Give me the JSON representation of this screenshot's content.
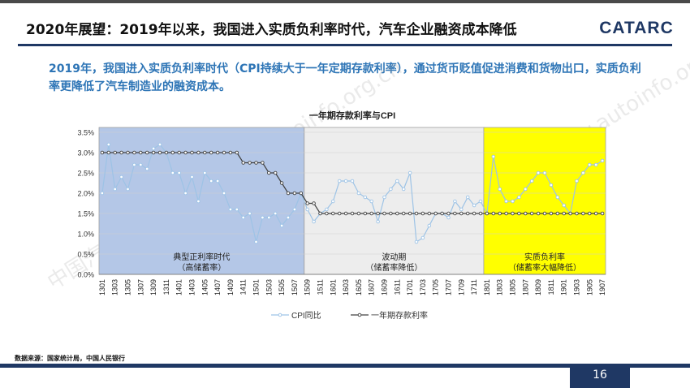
{
  "header": {
    "title": "2020年展望：2019年以来，我国进入实质负利率时代，汽车企业融资成本降低",
    "logo_text": "CATARC"
  },
  "summary": "2019年，我国进入实质负利率时代（CPI持续大于一年定期存款利率），通过货币贬值促进消费和货物出口，实质负利率更降低了汽车制造业的融资成本。",
  "watermarks": [
    "中国汽车工业信息网 www.autoinfo.org.cn",
    "中国汽车工业信息网 www.autoinfo.org.cn"
  ],
  "colors": {
    "navy": "#1f3864",
    "accent": "#2e75b6",
    "region1": "#b4c7e7",
    "region2": "#ededed",
    "region3": "#ffff00",
    "cpi_line": "#9dc3e6",
    "rate_line": "#404040"
  },
  "chart_data": {
    "type": "line",
    "title": "一年期存款利率与CPI",
    "ylim": [
      0,
      3.5
    ],
    "y_ticks": [
      "0.0%",
      "0.5%",
      "1.0%",
      "1.5%",
      "2.0%",
      "2.5%",
      "3.0%",
      "3.5%"
    ],
    "x_tick_labels": [
      "1301",
      "1303",
      "1305",
      "1307",
      "1309",
      "1311",
      "1401",
      "1403",
      "1405",
      "1407",
      "1409",
      "1411",
      "1501",
      "1503",
      "1505",
      "1507",
      "1509",
      "1511",
      "1601",
      "1603",
      "1605",
      "1607",
      "1609",
      "1611",
      "1701",
      "1703",
      "1705",
      "1707",
      "1709",
      "1711",
      "1801",
      "1803",
      "1805",
      "1807",
      "1809",
      "1811",
      "1901",
      "1903",
      "1905",
      "1907"
    ],
    "x": [
      "1301",
      "1302",
      "1303",
      "1304",
      "1305",
      "1306",
      "1307",
      "1308",
      "1309",
      "1310",
      "1311",
      "1312",
      "1401",
      "1402",
      "1403",
      "1404",
      "1405",
      "1406",
      "1407",
      "1408",
      "1409",
      "1410",
      "1411",
      "1412",
      "1501",
      "1502",
      "1503",
      "1504",
      "1505",
      "1506",
      "1507",
      "1508",
      "1509",
      "1510",
      "1511",
      "1512",
      "1601",
      "1602",
      "1603",
      "1604",
      "1605",
      "1606",
      "1607",
      "1608",
      "1609",
      "1610",
      "1611",
      "1612",
      "1701",
      "1702",
      "1703",
      "1704",
      "1705",
      "1706",
      "1707",
      "1708",
      "1709",
      "1710",
      "1711",
      "1712",
      "1801",
      "1802",
      "1803",
      "1804",
      "1805",
      "1806",
      "1807",
      "1808",
      "1809",
      "1810",
      "1811",
      "1812",
      "1901",
      "1902",
      "1903",
      "1904",
      "1905",
      "1906",
      "1907"
    ],
    "series": [
      {
        "name": "CPI同比",
        "values": [
          2.0,
          3.2,
          2.1,
          2.4,
          2.1,
          2.7,
          2.7,
          2.6,
          3.1,
          3.2,
          3.0,
          2.5,
          2.5,
          2.0,
          2.4,
          1.8,
          2.5,
          2.3,
          2.3,
          2.0,
          1.6,
          1.6,
          1.4,
          1.5,
          0.8,
          1.4,
          1.4,
          1.5,
          1.2,
          1.4,
          1.6,
          2.0,
          1.6,
          1.3,
          1.5,
          1.6,
          1.8,
          2.3,
          2.3,
          2.3,
          2.0,
          1.9,
          1.8,
          1.3,
          1.9,
          2.1,
          2.3,
          2.1,
          2.5,
          0.8,
          0.9,
          1.2,
          1.5,
          1.5,
          1.4,
          1.8,
          1.6,
          1.9,
          1.7,
          1.8,
          1.5,
          2.9,
          2.1,
          1.8,
          1.8,
          1.9,
          2.1,
          2.3,
          2.5,
          2.5,
          2.2,
          1.9,
          1.7,
          1.5,
          2.3,
          2.5,
          2.7,
          2.7,
          2.8
        ]
      },
      {
        "name": "一年期存款利率",
        "values": [
          3.0,
          3.0,
          3.0,
          3.0,
          3.0,
          3.0,
          3.0,
          3.0,
          3.0,
          3.0,
          3.0,
          3.0,
          3.0,
          3.0,
          3.0,
          3.0,
          3.0,
          3.0,
          3.0,
          3.0,
          3.0,
          3.0,
          2.75,
          2.75,
          2.75,
          2.75,
          2.5,
          2.5,
          2.25,
          2.0,
          2.0,
          2.0,
          1.75,
          1.75,
          1.5,
          1.5,
          1.5,
          1.5,
          1.5,
          1.5,
          1.5,
          1.5,
          1.5,
          1.5,
          1.5,
          1.5,
          1.5,
          1.5,
          1.5,
          1.5,
          1.5,
          1.5,
          1.5,
          1.5,
          1.5,
          1.5,
          1.5,
          1.5,
          1.5,
          1.5,
          1.5,
          1.5,
          1.5,
          1.5,
          1.5,
          1.5,
          1.5,
          1.5,
          1.5,
          1.5,
          1.5,
          1.5,
          1.5,
          1.5,
          1.5,
          1.5,
          1.5,
          1.5,
          1.5
        ]
      }
    ],
    "regions": [
      {
        "label_line1": "典型正利率时代",
        "label_line2": "（高储蓄率）",
        "start": "1301",
        "end": "1509",
        "color": "#b4c7e7"
      },
      {
        "label_line1": "波动期",
        "label_line2": "（储蓄率降低）",
        "start": "1509",
        "end": "1801",
        "color": "#ededed"
      },
      {
        "label_line1": "实质负利率",
        "label_line2": "（储蓄率大幅降低）",
        "start": "1801",
        "end": "1907",
        "color": "#ffff00"
      }
    ],
    "legend_position": "bottom"
  },
  "footer": {
    "source": "数据来源：国家统计局，中国人民银行",
    "page_number": "16"
  }
}
